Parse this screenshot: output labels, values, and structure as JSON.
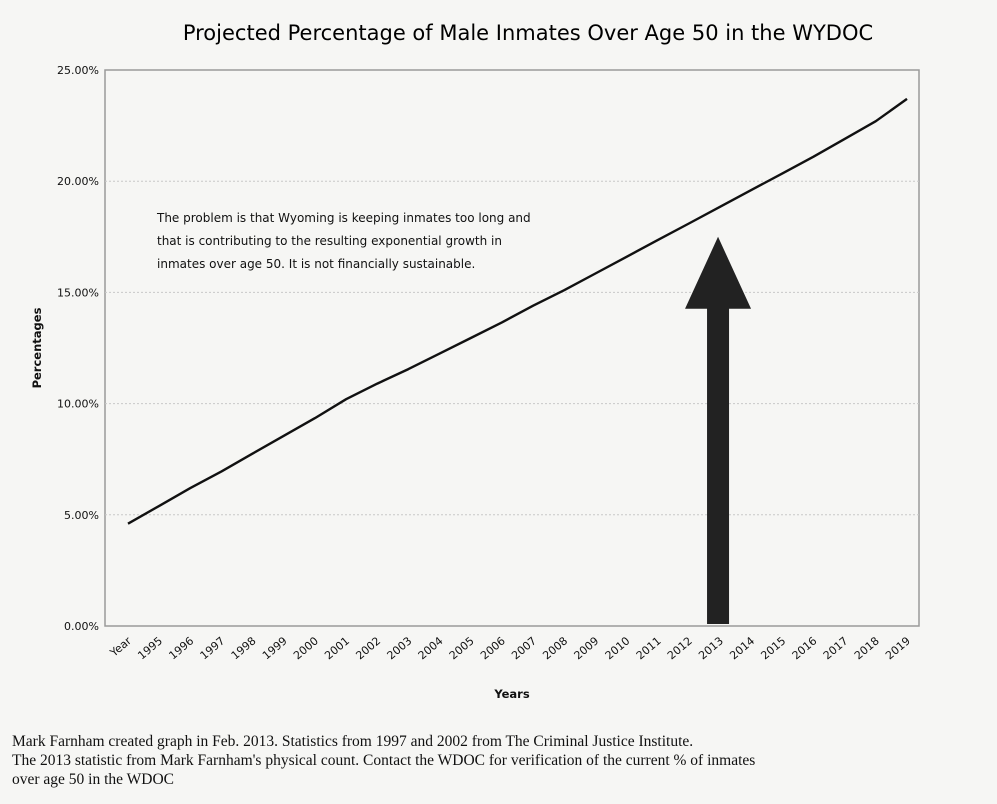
{
  "chart_data": {
    "type": "line",
    "title": "Projected Percentage of Male Inmates Over Age 50 in the WYDOC",
    "xlabel": "Years",
    "ylabel": "Percentages",
    "categories": [
      "Year",
      "1995",
      "1996",
      "1997",
      "1998",
      "1999",
      "2000",
      "2001",
      "2002",
      "2003",
      "2004",
      "2005",
      "2006",
      "2007",
      "2008",
      "2009",
      "2010",
      "2011",
      "2012",
      "2013",
      "2014",
      "2015",
      "2016",
      "2017",
      "2018",
      "2019"
    ],
    "y_ticks": [
      "0.00%",
      "5.00%",
      "10.00%",
      "15.00%",
      "20.00%",
      "25.00%"
    ],
    "ylim": [
      0,
      25
    ],
    "grid": "horizontal",
    "legend": "none",
    "series": [
      {
        "values": [
          4.6,
          5.4,
          6.2,
          6.95,
          7.75,
          8.55,
          9.35,
          10.2,
          10.9,
          11.55,
          12.25,
          12.95,
          13.65,
          14.4,
          15.1,
          15.85,
          16.6,
          17.35,
          18.1,
          18.85,
          19.6,
          20.35,
          21.1,
          21.9,
          22.7,
          23.7
        ],
        "color": "#111111"
      }
    ],
    "annotations": [
      {
        "type": "text",
        "lines": [
          "The problem is that Wyoming is keeping inmates too long and",
          "that is contributing to the resulting exponential growth in",
          "inmates over age 50.  It is not financially sustainable."
        ]
      },
      {
        "type": "arrow",
        "at_category": "2013",
        "from_y": 0,
        "to_y": 17.5,
        "color": "#222222"
      }
    ]
  },
  "caption": {
    "lines": [
      "Mark Farnham created graph in Feb. 2013. Statistics from 1997 and 2002 from The Criminal Justice Institute.",
      "The 2013 statistic from Mark Farnham's physical count.   Contact the WDOC for verification of the current % of inmates",
      " over age 50 in the WDOC"
    ]
  }
}
